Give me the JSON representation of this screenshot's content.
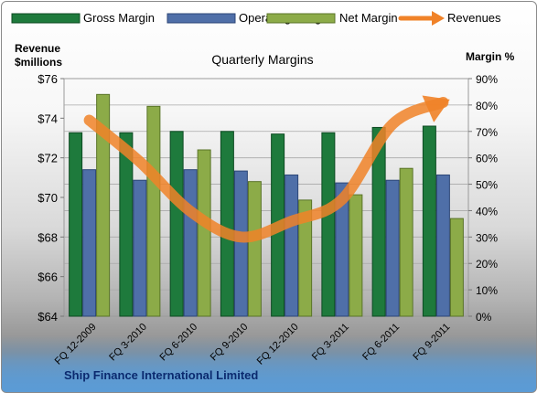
{
  "chart_data": {
    "type": "bar",
    "title": "Quarterly Margins",
    "footer": "Ship Finance International Limited",
    "categories": [
      "FQ 12-2009",
      "FQ 3-2010",
      "FQ 6-2010",
      "FQ 9-2010",
      "FQ 12-2010",
      "FQ 3-2011",
      "FQ 6-2011",
      "FQ 9-2011"
    ],
    "series": [
      {
        "name": "Gross Margin",
        "axis": "right",
        "color": "#1e7a3c",
        "values": [
          69.5,
          69.5,
          70.0,
          70.0,
          69.0,
          69.5,
          71.5,
          72.0
        ]
      },
      {
        "name": "Operating Margin",
        "axis": "right",
        "color": "#4f6fa8",
        "values": [
          55.5,
          51.5,
          55.5,
          55.0,
          53.5,
          50.5,
          51.5,
          53.5
        ]
      },
      {
        "name": "Net Margin",
        "axis": "right",
        "color": "#8cab48",
        "values": [
          84.0,
          79.5,
          63.0,
          51.0,
          44.0,
          46.0,
          56.0,
          37.0
        ]
      },
      {
        "name": "Revenues",
        "axis": "left",
        "type": "line",
        "color": "#f08228",
        "values": [
          73.9,
          71.8,
          69.3,
          68.0,
          68.8,
          69.9,
          73.7,
          74.8
        ]
      }
    ],
    "y_left": {
      "label_line1": "Revenue",
      "label_line2": "$millions",
      "min": 64,
      "max": 76,
      "step": 2,
      "ticks": [
        "$64",
        "$66",
        "$68",
        "$70",
        "$72",
        "$74",
        "$76"
      ]
    },
    "y_right": {
      "label": "Margin %",
      "min": 0,
      "max": 90,
      "step": 10,
      "ticks": [
        "0%",
        "10%",
        "20%",
        "30%",
        "40%",
        "50%",
        "60%",
        "70%",
        "80%",
        "90%"
      ]
    },
    "legend_position": "top",
    "grid": true
  }
}
